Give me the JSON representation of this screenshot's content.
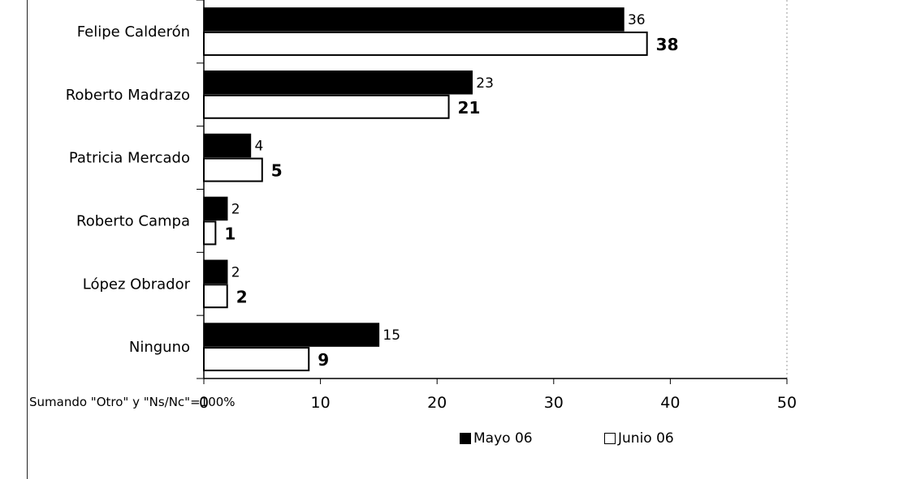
{
  "chart_data": {
    "type": "bar",
    "orientation": "horizontal",
    "categories": [
      "Felipe Calderón",
      "Roberto Madrazo",
      "Patricia Mercado",
      "Roberto Campa",
      "López Obrador",
      "Ninguno"
    ],
    "series": [
      {
        "name": "Mayo 06",
        "values": [
          36,
          23,
          4,
          2,
          2,
          15
        ],
        "color": "#000000"
      },
      {
        "name": "Junio 06",
        "values": [
          38,
          21,
          5,
          1,
          2,
          9
        ],
        "color": "#ffffff"
      }
    ],
    "xlim": [
      0,
      50
    ],
    "xticks": [
      0,
      10,
      20,
      30,
      40,
      50
    ],
    "grid": false,
    "legend": "bottom",
    "note": "Sumando \"Otro\" y \"Ns/Nc\"=100%"
  }
}
